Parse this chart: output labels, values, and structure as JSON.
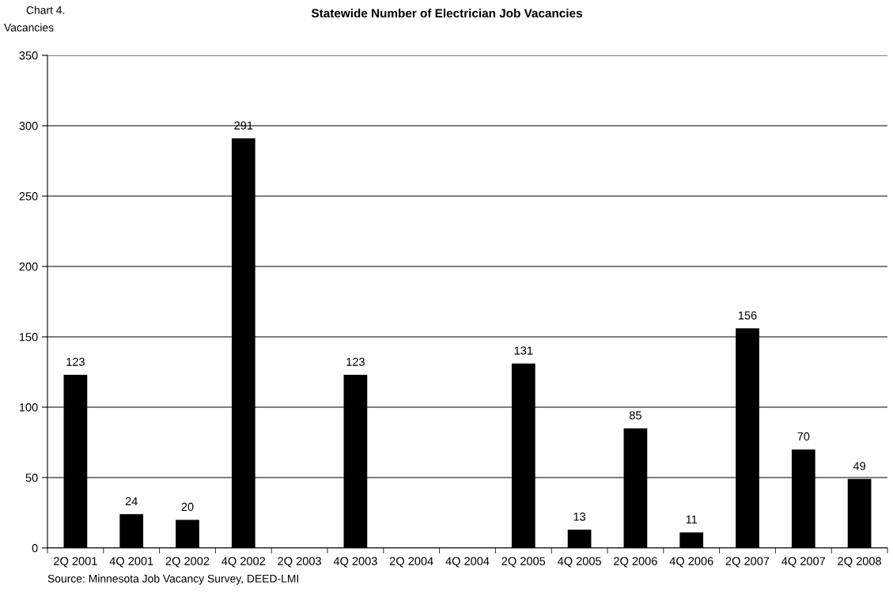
{
  "chart_data": {
    "type": "bar",
    "title": "Statewide Number of Electrician Job Vacancies",
    "ylabel": "Vacancies",
    "categories": [
      "2Q 2001",
      "4Q 2001",
      "2Q 2002",
      "4Q 2002",
      "2Q 2003",
      "4Q 2003",
      "2Q 2004",
      "4Q 2004",
      "2Q 2005",
      "4Q 2005",
      "2Q 2006",
      "4Q 2006",
      "2Q 2007",
      "4Q 2007",
      "2Q 2008"
    ],
    "values": [
      123,
      24,
      20,
      291,
      null,
      123,
      null,
      null,
      131,
      13,
      85,
      11,
      156,
      70,
      49
    ],
    "color": "#000000",
    "ylim": [
      0,
      350
    ],
    "yticks": [
      0,
      50,
      100,
      150,
      200,
      250,
      300,
      350
    ],
    "grid": "y",
    "data_labels": true,
    "annotations": [
      "Chart 4.",
      "Source: Minnesota Job Vacancy Survey, DEED-LMI"
    ]
  }
}
